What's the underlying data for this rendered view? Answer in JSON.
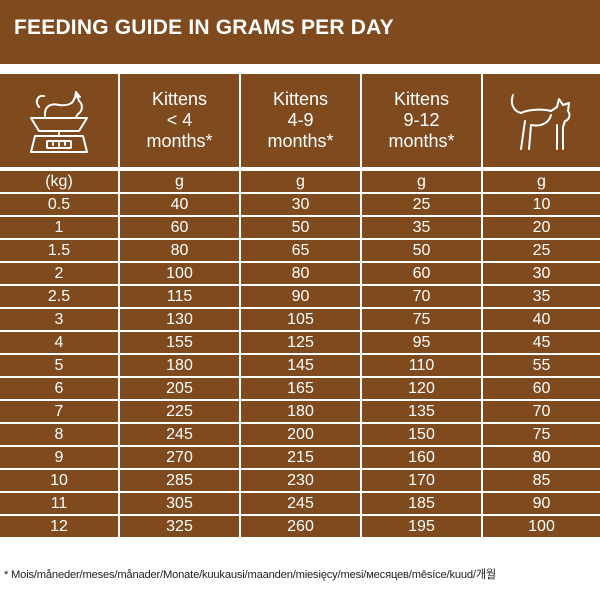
{
  "title": "FEEDING GUIDE IN GRAMS PER DAY",
  "icons": {
    "weight": "scale-with-kitten-icon",
    "adult": "adult-cat-icon"
  },
  "colors": {
    "brown": "#7e4a1e",
    "text": "#ffffff"
  },
  "table": {
    "headers": [
      "Kittens\n< 4\nmonths*",
      "Kittens\n4-9\nmonths*",
      "Kittens\n9-12\nmonths*"
    ],
    "units": [
      "(kg)",
      "g",
      "g",
      "g",
      "g"
    ],
    "rows": [
      [
        "0.5",
        "40",
        "30",
        "25",
        "10"
      ],
      [
        "1",
        "60",
        "50",
        "35",
        "20"
      ],
      [
        "1.5",
        "80",
        "65",
        "50",
        "25"
      ],
      [
        "2",
        "100",
        "80",
        "60",
        "30"
      ],
      [
        "2.5",
        "115",
        "90",
        "70",
        "35"
      ],
      [
        "3",
        "130",
        "105",
        "75",
        "40"
      ],
      [
        "4",
        "155",
        "125",
        "95",
        "45"
      ],
      [
        "5",
        "180",
        "145",
        "110",
        "55"
      ],
      [
        "6",
        "205",
        "165",
        "120",
        "60"
      ],
      [
        "7",
        "225",
        "180",
        "135",
        "70"
      ],
      [
        "8",
        "245",
        "200",
        "150",
        "75"
      ],
      [
        "9",
        "270",
        "215",
        "160",
        "80"
      ],
      [
        "10",
        "285",
        "230",
        "170",
        "85"
      ],
      [
        "11",
        "305",
        "245",
        "185",
        "90"
      ],
      [
        "12",
        "325",
        "260",
        "195",
        "100"
      ]
    ]
  },
  "footnote": "* Mois/måneder/meses/månader/Monate/kuukausi/maanden/miesięcy/mesi/месяцев/měsíce/kuud/개월"
}
